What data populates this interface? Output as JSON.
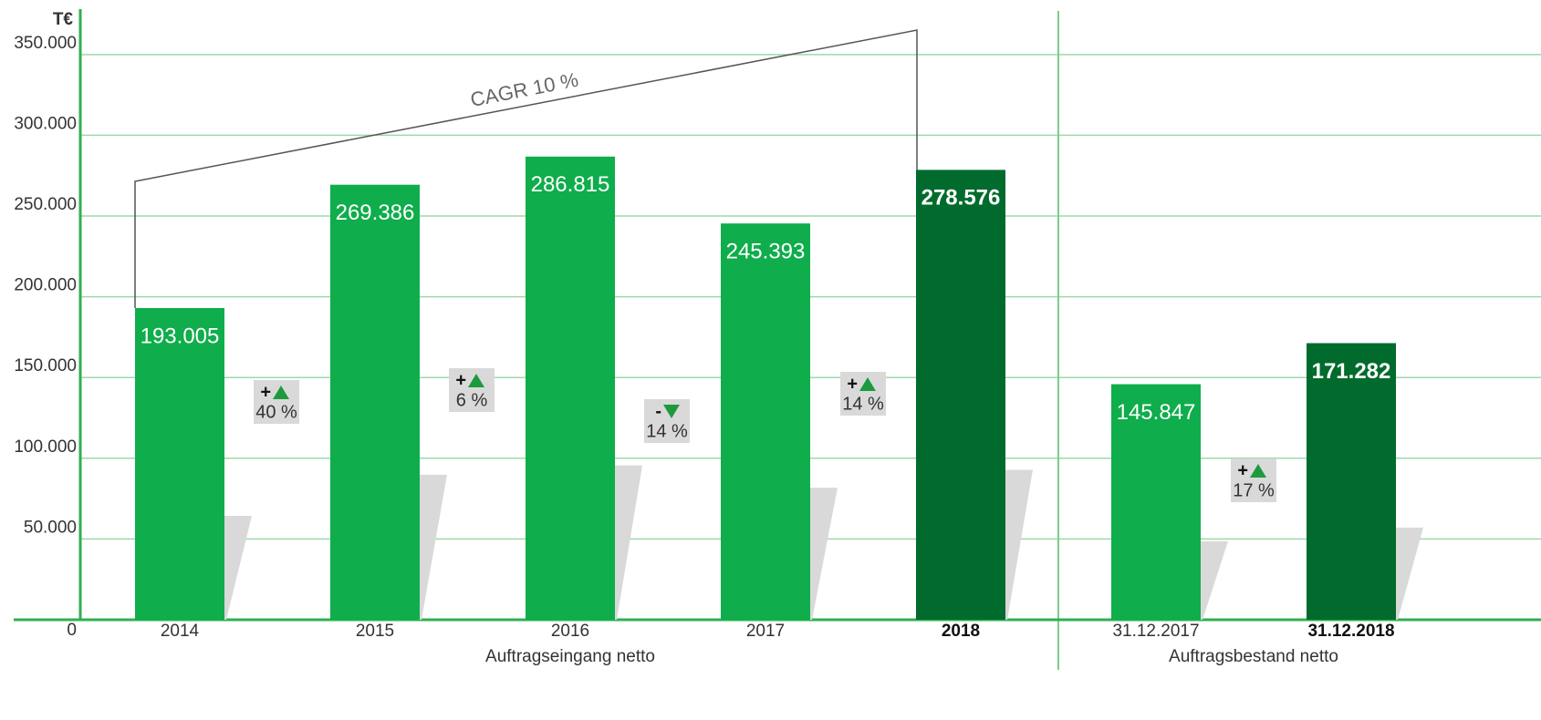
{
  "chart_data": {
    "type": "bar",
    "y_unit": "T€",
    "categories": [
      "2014",
      "2015",
      "2016",
      "2017",
      "2018",
      "31.12.2017",
      "31.12.2018"
    ],
    "values": [
      193005,
      269386,
      286815,
      245393,
      278576,
      145847,
      171282
    ],
    "value_labels": [
      "193.005",
      "269.386",
      "286.815",
      "245.393",
      "278.576",
      "145.847",
      "171.282"
    ],
    "colors": [
      "#0fad4b",
      "#0fad4b",
      "#0fad4b",
      "#0fad4b",
      "#006b2d",
      "#0fad4b",
      "#006b2d"
    ],
    "bold": [
      false,
      false,
      false,
      false,
      true,
      false,
      true
    ],
    "groups": [
      "Auftragseingang netto",
      "Auftragsbestand netto"
    ],
    "changes": [
      {
        "sign": "+",
        "label": "40 %",
        "direction": "up"
      },
      {
        "sign": "+",
        "label": "6 %",
        "direction": "up"
      },
      {
        "sign": "-",
        "label": "14 %",
        "direction": "down"
      },
      {
        "sign": "+",
        "label": "14 %",
        "direction": "up"
      },
      {
        "sign": "+",
        "label": "17 %",
        "direction": "up"
      }
    ],
    "cagr_label": "CAGR 10 %",
    "ylim": [
      0,
      377000
    ],
    "yticks": [
      0,
      {
        "value": 50000,
        "label": "50.000"
      },
      {
        "value": 100000,
        "label": "100.000"
      },
      {
        "value": 150000,
        "label": "150.000"
      },
      {
        "value": 200000,
        "label": "200.000"
      },
      {
        "value": 250000,
        "label": "250.000"
      },
      {
        "value": 300000,
        "label": "300.000"
      },
      {
        "value": 350000,
        "label": "350.000"
      }
    ],
    "grid": true
  }
}
